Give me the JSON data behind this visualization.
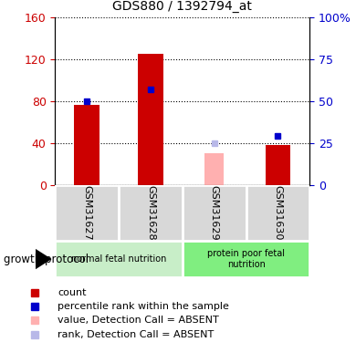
{
  "title": "GDS880 / 1392794_at",
  "samples": [
    "GSM31627",
    "GSM31628",
    "GSM31629",
    "GSM31630"
  ],
  "count_values": [
    76,
    125,
    null,
    38
  ],
  "percentile_values": [
    50,
    57,
    null,
    29
  ],
  "absent_value_values": [
    null,
    null,
    30,
    null
  ],
  "absent_rank_values": [
    null,
    null,
    25,
    null
  ],
  "ylim_left": [
    0,
    160
  ],
  "ylim_right": [
    0,
    100
  ],
  "yticks_left": [
    0,
    40,
    80,
    120,
    160
  ],
  "yticks_right": [
    0,
    25,
    50,
    75,
    100
  ],
  "ytick_labels_right": [
    "0",
    "25",
    "50",
    "75",
    "100%"
  ],
  "color_count": "#cc0000",
  "color_percentile": "#0000cc",
  "color_absent_value": "#ffb0b0",
  "color_absent_rank": "#b8b8e8",
  "bar_width": 0.4,
  "absent_bar_width": 0.3,
  "group1_label": "normal fetal nutrition",
  "group2_label": "protein poor fetal\nnutrition",
  "group_color1": "#c8eec8",
  "group_color2": "#80ee80",
  "sample_bg_color": "#d8d8d8",
  "protocol_label": "growth protocol",
  "legend_items": [
    "count",
    "percentile rank within the sample",
    "value, Detection Call = ABSENT",
    "rank, Detection Call = ABSENT"
  ],
  "legend_colors": [
    "#cc0000",
    "#0000cc",
    "#ffb0b0",
    "#b8b8e8"
  ]
}
